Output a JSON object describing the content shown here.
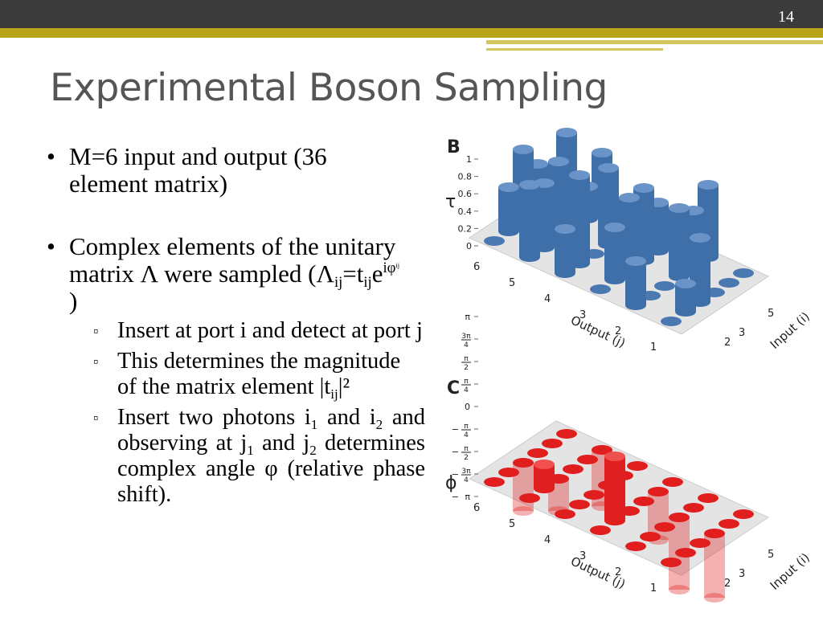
{
  "slide_number": "14",
  "title": "Experimental Boson Sampling",
  "bullets": [
    {
      "runs": [
        {
          "t": "M=6 input and output (36 element matrix)"
        }
      ]
    },
    {
      "runs": [
        {
          "t": "Complex elements of the unitary matrix Λ were sampled (Λ"
        },
        {
          "sub": "ij"
        },
        {
          "t": "=t"
        },
        {
          "sub": "ij"
        },
        {
          "t": "e"
        },
        {
          "sup": "iφ"
        },
        {
          "supsub": "ij"
        },
        {
          "t": " )"
        }
      ],
      "sub_bullets": [
        {
          "runs": [
            {
              "t": "Insert at port i and detect at port j"
            }
          ]
        },
        {
          "runs": [
            {
              "t": "This determines the magnitude of the matrix element |t"
            },
            {
              "sub": "ij"
            },
            {
              "t": "|²"
            }
          ]
        },
        {
          "runs": [
            {
              "t": "Insert two photons i"
            },
            {
              "sub": "1"
            },
            {
              "t": " and i"
            },
            {
              "sub": "2"
            },
            {
              "t": " and observing at j"
            },
            {
              "sub": "1"
            },
            {
              "t": " and j"
            },
            {
              "sub": "2"
            },
            {
              "t": " determines complex angle φ (relative phase shift)."
            }
          ]
        }
      ]
    }
  ],
  "figures": [
    {
      "label": "B",
      "y_label": "τ",
      "y_ticks": [
        "0",
        "0.2",
        "0.4",
        "0.6",
        "0.8",
        "1"
      ],
      "output_ticks": [
        "6",
        "5",
        "4",
        "3",
        "2",
        "1"
      ],
      "output_label": "Output (j)",
      "input_ticks": [
        "2",
        "3",
        "5"
      ],
      "input_label": "Input (i)"
    },
    {
      "label": "C",
      "y_label": "ϕ",
      "y_ticks": [
        {
          "sign": "−",
          "num": "π",
          "den": ""
        },
        {
          "sign": "−",
          "num": "3π",
          "den": "4"
        },
        {
          "sign": "−",
          "num": "π",
          "den": "2"
        },
        {
          "sign": "−",
          "num": "π",
          "den": "4"
        },
        {
          "sign": "",
          "num": "0",
          "den": ""
        },
        {
          "sign": "",
          "num": "π",
          "den": "4"
        },
        {
          "sign": "",
          "num": "π",
          "den": "2"
        },
        {
          "sign": "",
          "num": "3π",
          "den": "4"
        },
        {
          "sign": "",
          "num": "π",
          "den": ""
        }
      ],
      "output_ticks": [
        "6",
        "5",
        "4",
        "3",
        "2",
        "1"
      ],
      "output_label": "Output (j)",
      "input_ticks": [
        "2",
        "3",
        "5"
      ],
      "input_label": "Input (i)"
    }
  ]
}
